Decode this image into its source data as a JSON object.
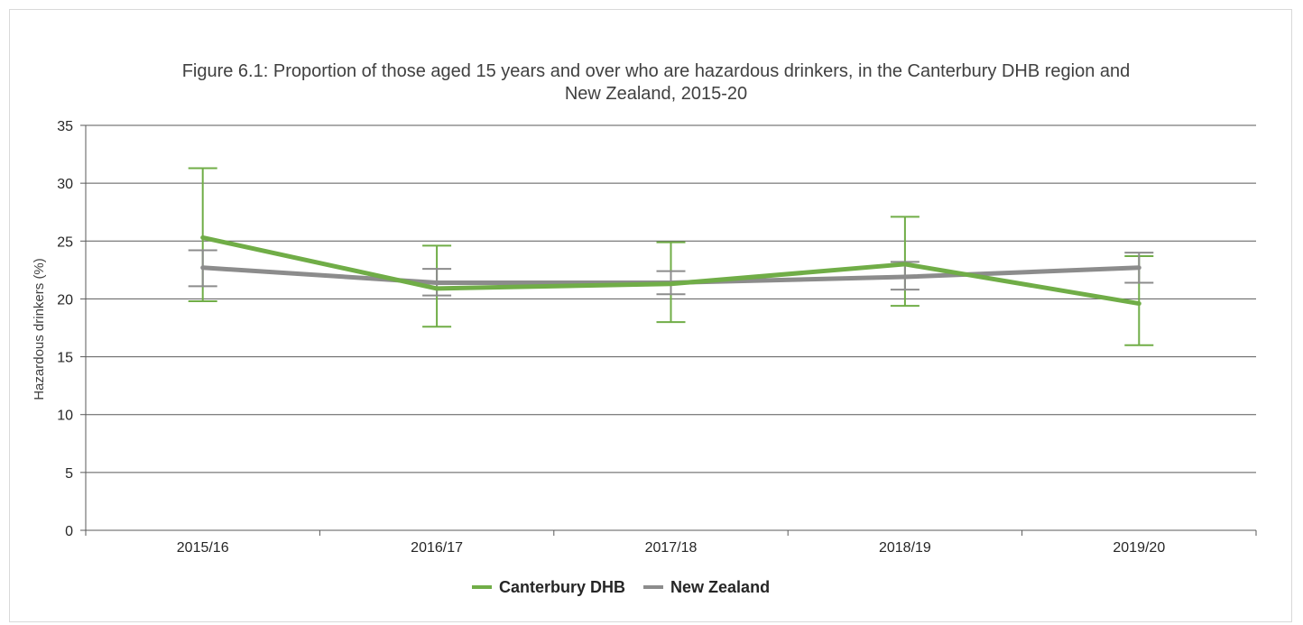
{
  "chart_data": {
    "type": "line",
    "title_line1": "Figure 6.1: Proportion of those aged 15 years and over who are hazardous drinkers, in the Canterbury DHB region and",
    "title_line2": "New Zealand, 2015-20",
    "ylabel": "Hazardous drinkers (%)",
    "xlabel": "",
    "ylim": [
      0,
      35
    ],
    "yticks": [
      0,
      5,
      10,
      15,
      20,
      25,
      30,
      35
    ],
    "categories": [
      "2015/16",
      "2016/17",
      "2017/18",
      "2018/19",
      "2019/20"
    ],
    "grid": true,
    "legend_position": "bottom",
    "series": [
      {
        "name": "Canterbury DHB",
        "color": "#70ad47",
        "values": [
          25.3,
          20.9,
          21.3,
          23.0,
          19.6
        ],
        "error_low": [
          19.8,
          17.6,
          18.0,
          19.4,
          16.0
        ],
        "error_high": [
          31.3,
          24.6,
          24.9,
          27.1,
          23.7
        ]
      },
      {
        "name": "New Zealand",
        "color": "#8c8c8c",
        "values": [
          22.7,
          21.4,
          21.4,
          21.9,
          22.7
        ],
        "error_low": [
          21.1,
          20.3,
          20.4,
          20.8,
          21.4
        ],
        "error_high": [
          24.2,
          22.6,
          22.4,
          23.2,
          24.0
        ]
      }
    ]
  }
}
